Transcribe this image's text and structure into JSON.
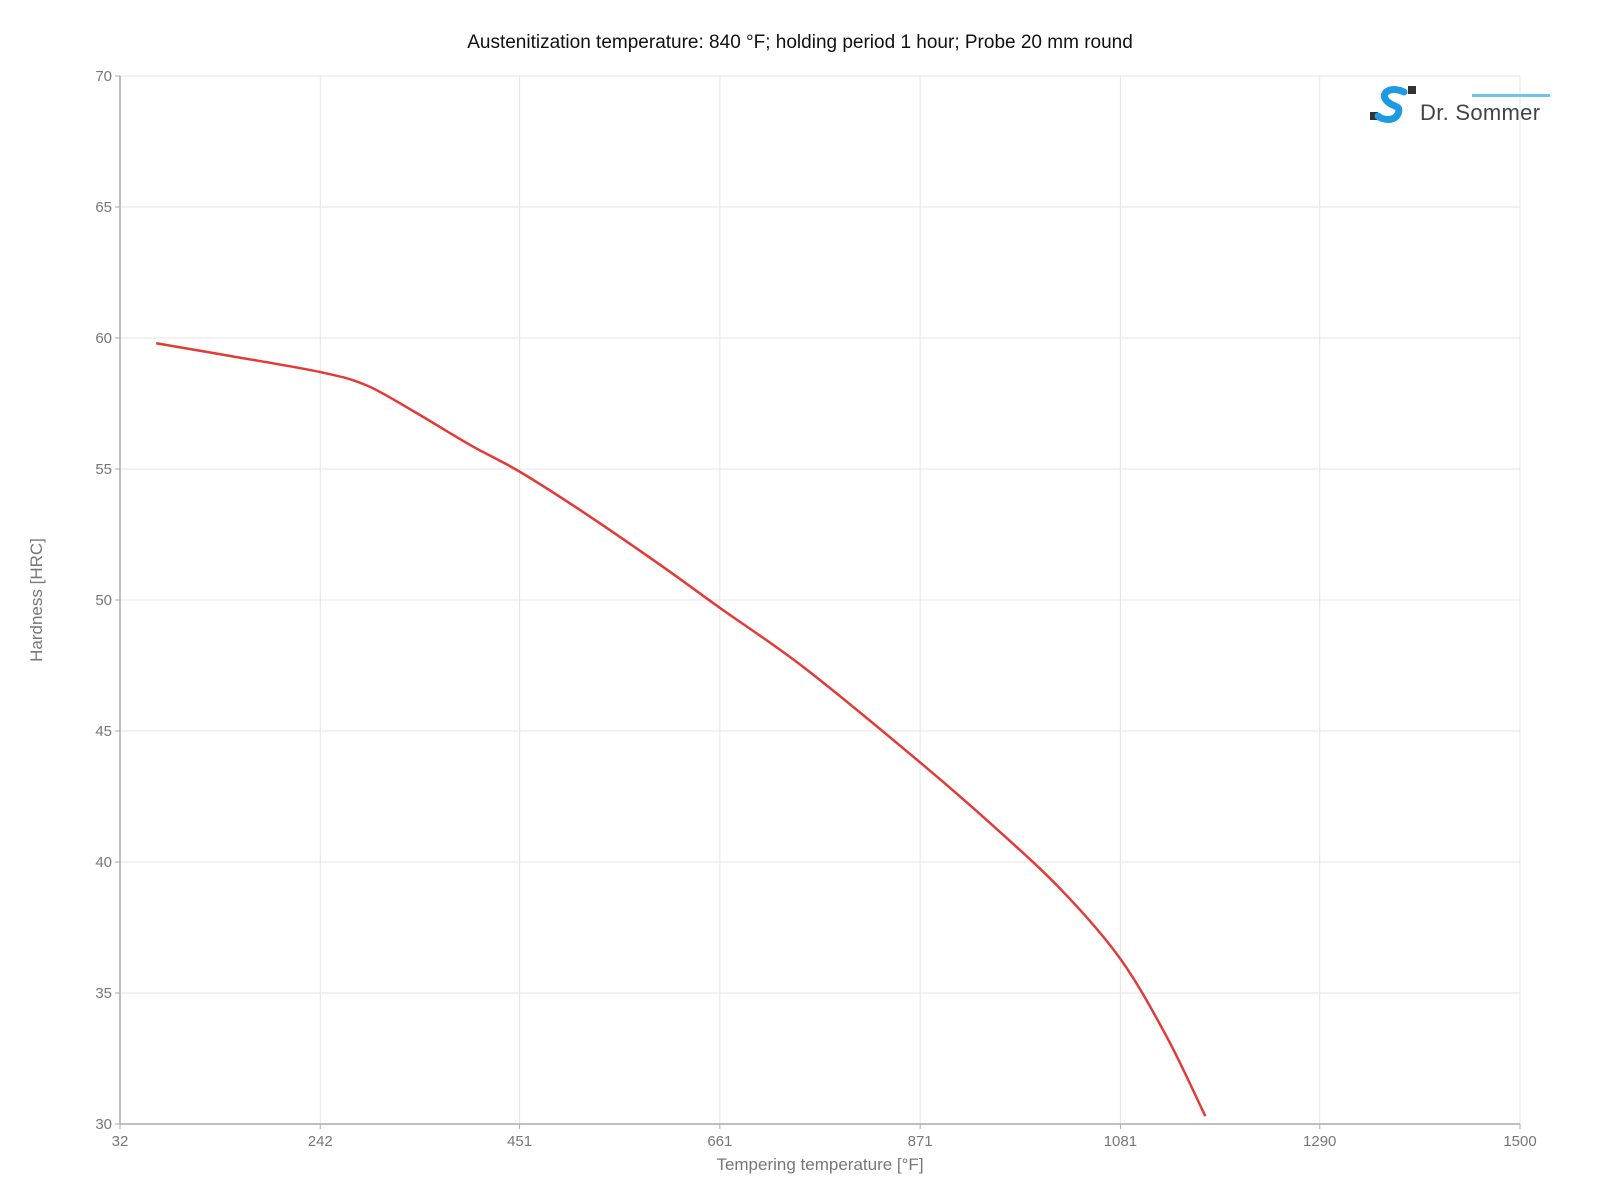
{
  "chart_data": {
    "type": "line",
    "title": "Austenitization temperature: 840 °F; holding period 1 hour; Probe 20 mm round",
    "xlabel": "Tempering temperature [°F]",
    "ylabel": "Hardness [HRC]",
    "xlim": [
      32,
      1500
    ],
    "ylim": [
      30,
      70
    ],
    "x_ticks": [
      32,
      242,
      451,
      661,
      871,
      1081,
      1290,
      1500
    ],
    "x_tick_labels": [
      "32",
      "242",
      "451",
      "661",
      "871",
      "1081",
      "1290",
      "1500"
    ],
    "y_ticks": [
      30,
      35,
      40,
      45,
      50,
      55,
      60,
      65,
      70
    ],
    "y_tick_labels": [
      "30",
      "35",
      "40",
      "45",
      "50",
      "55",
      "60",
      "65",
      "70"
    ],
    "grid": true,
    "legend": "none",
    "series": [
      {
        "color": "#e53935",
        "x": [
          70,
          150,
          242,
          290,
          340,
          400,
          451,
          520,
          600,
          661,
          750,
          871,
          950,
          1020,
          1081,
          1130,
          1170
        ],
        "y": [
          59.8,
          59.3,
          58.7,
          58.2,
          57.2,
          55.9,
          54.9,
          53.3,
          51.3,
          49.7,
          47.4,
          43.8,
          41.3,
          38.9,
          36.3,
          33.3,
          30.3
        ]
      }
    ]
  },
  "logo": {
    "text": "Dr. Sommer",
    "colors": {
      "blue": "#1e9be0",
      "dark": "#333333",
      "light_blue": "#6fc3ee"
    }
  }
}
